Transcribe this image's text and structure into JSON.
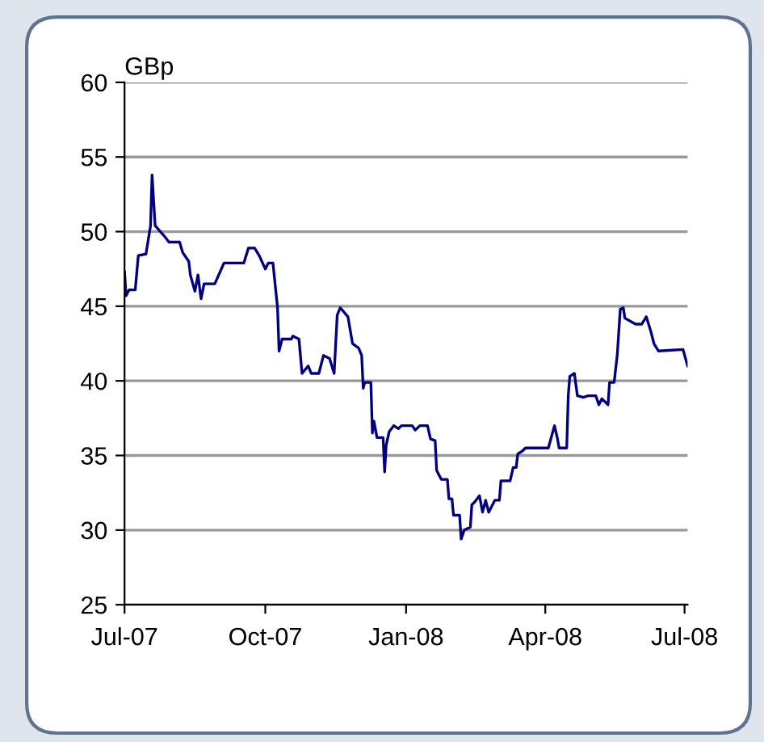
{
  "chart_data": {
    "type": "line",
    "ylabel": "GBp",
    "x": [
      "2007-07-01",
      "2007-07-02",
      "2007-07-04",
      "2007-07-08",
      "2007-07-10",
      "2007-07-15",
      "2007-07-18",
      "2007-07-19",
      "2007-07-21",
      "2007-07-27",
      "2007-07-30",
      "2007-08-06",
      "2007-08-08",
      "2007-08-12",
      "2007-08-13",
      "2007-08-16",
      "2007-08-18",
      "2007-08-20",
      "2007-08-22",
      "2007-08-29",
      "2007-09-04",
      "2007-09-17",
      "2007-09-20",
      "2007-09-24",
      "2007-09-27",
      "2007-10-01",
      "2007-10-03",
      "2007-10-06",
      "2007-10-09",
      "2007-10-10",
      "2007-10-12",
      "2007-10-18",
      "2007-10-19",
      "2007-10-23",
      "2007-10-25",
      "2007-10-29",
      "2007-10-31",
      "2007-11-05",
      "2007-11-08",
      "2007-11-12",
      "2007-11-15",
      "2007-11-17",
      "2007-11-19",
      "2007-11-24",
      "2007-11-27",
      "2007-12-01",
      "2007-12-03",
      "2007-12-04",
      "2007-12-05",
      "2007-12-09",
      "2007-12-10",
      "2007-12-11",
      "2007-12-13",
      "2007-12-17",
      "2007-12-18",
      "2007-12-19",
      "2007-12-21",
      "2007-12-24",
      "2007-12-27",
      "2007-12-29",
      "2008-01-05",
      "2008-01-07",
      "2008-01-10",
      "2008-01-15",
      "2008-01-17",
      "2008-01-20",
      "2008-01-21",
      "2008-01-24",
      "2008-01-28",
      "2008-01-29",
      "2008-01-31",
      "2008-02-01",
      "2008-02-05",
      "2008-02-06",
      "2008-02-08",
      "2008-02-12",
      "2008-02-13",
      "2008-02-15",
      "2008-02-18",
      "2008-02-20",
      "2008-02-22",
      "2008-02-24",
      "2008-02-28",
      "2008-03-02",
      "2008-03-03",
      "2008-03-09",
      "2008-03-11",
      "2008-03-13",
      "2008-03-14",
      "2008-03-17",
      "2008-03-19",
      "2008-04-03",
      "2008-04-07",
      "2008-04-09",
      "2008-04-10",
      "2008-04-15",
      "2008-04-16",
      "2008-04-17",
      "2008-04-20",
      "2008-04-22",
      "2008-04-26",
      "2008-04-29",
      "2008-05-04",
      "2008-05-06",
      "2008-05-08",
      "2008-05-12",
      "2008-05-13",
      "2008-05-16",
      "2008-05-18",
      "2008-05-20",
      "2008-05-22",
      "2008-05-23",
      "2008-05-30",
      "2008-06-03",
      "2008-06-06",
      "2008-06-09",
      "2008-06-11",
      "2008-06-14",
      "2008-06-30",
      "2008-07-03"
    ],
    "series": [
      {
        "color": "#000080",
        "values": [
          47.3,
          45.7,
          46.1,
          46.1,
          48.4,
          48.5,
          50.4,
          53.8,
          50.4,
          49.7,
          49.3,
          49.3,
          48.6,
          48.0,
          47.1,
          46.0,
          47.1,
          45.5,
          46.5,
          46.5,
          47.9,
          47.9,
          48.9,
          48.9,
          48.4,
          47.5,
          47.9,
          47.9,
          44.9,
          42.0,
          42.8,
          42.8,
          43.0,
          42.8,
          40.5,
          41.0,
          40.5,
          40.5,
          41.7,
          41.5,
          40.5,
          44.4,
          44.9,
          44.3,
          42.5,
          42.2,
          41.7,
          39.5,
          39.9,
          39.9,
          36.5,
          37.3,
          36.2,
          36.2,
          33.9,
          35.7,
          36.6,
          37.0,
          36.8,
          37.0,
          37.0,
          36.7,
          37.0,
          37.0,
          36.1,
          36.0,
          34.0,
          33.4,
          33.4,
          32.1,
          32.1,
          31.0,
          31.0,
          29.4,
          30.0,
          30.2,
          31.7,
          31.9,
          32.3,
          31.2,
          32.0,
          31.2,
          32.0,
          32.0,
          33.3,
          33.3,
          34.2,
          34.2,
          35.1,
          35.3,
          35.5,
          35.5,
          37.0,
          36.1,
          35.5,
          35.5,
          39.0,
          40.3,
          40.5,
          39.0,
          38.9,
          39.0,
          39.0,
          38.4,
          38.8,
          38.4,
          39.9,
          39.9,
          41.7,
          44.8,
          44.9,
          44.2,
          43.8,
          43.8,
          44.3,
          43.3,
          42.5,
          42.0,
          42.1,
          41.0
        ]
      }
    ],
    "xlim": [
      "2007-07-01",
      "2008-07-03"
    ],
    "xticks": [
      {
        "value": "2007-07-01",
        "label": "Jul-07"
      },
      {
        "value": "2007-10-01",
        "label": "Oct-07"
      },
      {
        "value": "2008-01-01",
        "label": "Jan-08"
      },
      {
        "value": "2008-04-01",
        "label": "Apr-08"
      },
      {
        "value": "2008-07-01",
        "label": "Jul-08"
      }
    ],
    "ylim": [
      25,
      60
    ],
    "yticks": [
      25,
      30,
      35,
      40,
      45,
      50,
      55,
      60
    ],
    "grid": "y",
    "marker": "none",
    "line_style": "solid"
  }
}
